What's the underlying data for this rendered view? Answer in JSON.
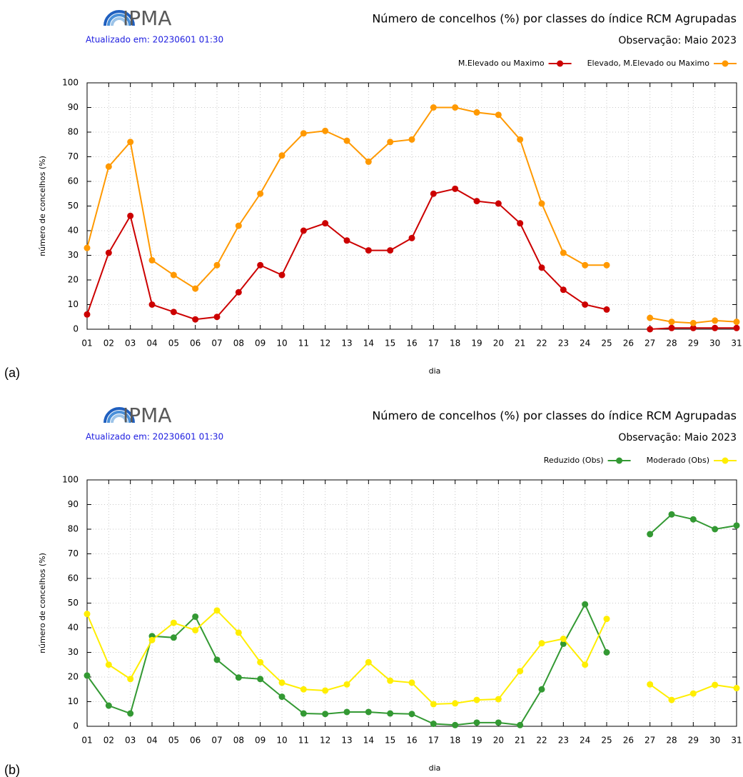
{
  "chart_data": [
    {
      "type": "line",
      "logo_text": "IPMA",
      "updated": "Atualizado em: 20230601 01:30",
      "title": "Número de concelhos (%) por classes do índice RCM Agrupadas",
      "subtitle": "Observação: Maio 2023",
      "y_label": "número de concelhos (%)",
      "x_label": "dia",
      "panel_label": "(a)",
      "legend": "top-right",
      "grid": true,
      "categories": [
        "01",
        "02",
        "03",
        "04",
        "05",
        "06",
        "07",
        "08",
        "09",
        "10",
        "11",
        "12",
        "13",
        "14",
        "15",
        "16",
        "17",
        "18",
        "19",
        "20",
        "21",
        "22",
        "23",
        "24",
        "25",
        "26",
        "27",
        "28",
        "29",
        "30",
        "31"
      ],
      "ylim": [
        0,
        100
      ],
      "yticks": [
        0,
        10,
        20,
        30,
        40,
        50,
        60,
        70,
        80,
        90,
        100
      ],
      "series": [
        {
          "name": "M.Elevado ou Maximo",
          "color": "#cc0000",
          "values": [
            6,
            31,
            46,
            10,
            7,
            4,
            5,
            15,
            26,
            22,
            40,
            43,
            36,
            32,
            32,
            37,
            55,
            57,
            52,
            51,
            43,
            25,
            16,
            10,
            8,
            null,
            0,
            0.5,
            0.5,
            0.5,
            0.5
          ]
        },
        {
          "name": "Elevado, M.Elevado ou Maximo",
          "color": "#ff9900",
          "values": [
            33,
            66,
            76,
            28,
            22,
            16.5,
            26,
            42,
            55,
            70.5,
            79.5,
            80.5,
            76.5,
            68,
            76,
            77,
            90,
            90,
            88,
            87,
            77,
            51,
            31,
            26,
            26,
            null,
            4.6,
            3,
            2.5,
            3.5,
            3
          ]
        }
      ]
    },
    {
      "type": "line",
      "logo_text": "IPMA",
      "updated": "Atualizado em: 20230601 01:30",
      "title": "Número de concelhos (%) por classes do índice RCM Agrupadas",
      "subtitle": "Observação: Maio 2023",
      "y_label": "número de concelhos (%)",
      "x_label": "dia",
      "panel_label": "(b)",
      "legend": "top-right",
      "grid": true,
      "categories": [
        "01",
        "02",
        "03",
        "04",
        "05",
        "06",
        "07",
        "08",
        "09",
        "10",
        "11",
        "12",
        "13",
        "14",
        "15",
        "16",
        "17",
        "18",
        "19",
        "20",
        "21",
        "22",
        "23",
        "24",
        "25",
        "26",
        "27",
        "28",
        "29",
        "30",
        "31"
      ],
      "ylim": [
        0,
        100
      ],
      "yticks": [
        0,
        10,
        20,
        30,
        40,
        50,
        60,
        70,
        80,
        90,
        100
      ],
      "series": [
        {
          "name": "Reduzido (Obs)",
          "color": "#339933",
          "values": [
            20.6,
            8.4,
            5.2,
            36.6,
            36,
            44.5,
            27,
            19.8,
            19.2,
            12,
            5.2,
            5,
            5.8,
            5.8,
            5.2,
            5,
            1,
            0.5,
            1.5,
            1.5,
            0.5,
            15,
            33.5,
            49.5,
            30,
            null,
            78,
            86,
            84,
            80,
            81.5
          ]
        },
        {
          "name": "Moderado (Obs)",
          "color": "#ffee00",
          "values": [
            45.6,
            25,
            19.2,
            35,
            42,
            39,
            47,
            38,
            26,
            17.7,
            15,
            14.5,
            17,
            26,
            18.5,
            17.7,
            9,
            9.3,
            10.7,
            11,
            22.4,
            33.7,
            35.5,
            25,
            43.6,
            null,
            17,
            10.7,
            13.3,
            16.8,
            15.5
          ]
        }
      ]
    }
  ]
}
